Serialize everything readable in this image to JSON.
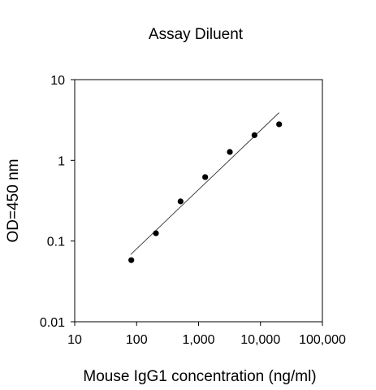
{
  "chart_data": {
    "type": "scatter",
    "title": "Assay Diluent",
    "xlabel": "Mouse IgG1 concentration (ng/ml)",
    "ylabel": "OD=450 nm",
    "xscale": "log",
    "yscale": "log",
    "xlim": [
      10,
      100000
    ],
    "ylim": [
      0.01,
      10
    ],
    "xticks": [
      10,
      100,
      1000,
      10000,
      100000
    ],
    "xtick_labels": [
      "10",
      "100",
      "1,000",
      "10,000",
      "100,000"
    ],
    "yticks": [
      0.01,
      0.1,
      1,
      10
    ],
    "ytick_labels": [
      "0.01",
      "0.1",
      "1",
      "10"
    ],
    "grid": false,
    "legend": "none",
    "series": [
      {
        "type": "scatter",
        "x": [
          82,
          205,
          512,
          1280,
          3200,
          8000,
          20000
        ],
        "y": [
          0.058,
          0.125,
          0.31,
          0.62,
          1.27,
          2.05,
          2.8
        ]
      },
      {
        "type": "line",
        "x": [
          80,
          20000
        ],
        "y": [
          0.068,
          3.9
        ]
      }
    ]
  }
}
